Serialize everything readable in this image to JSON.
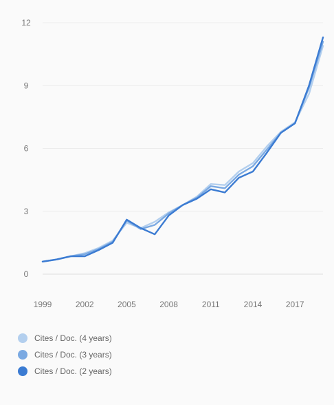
{
  "chart_data": {
    "type": "line",
    "title": "",
    "xlabel": "",
    "ylabel": "",
    "ylim": [
      0,
      12
    ],
    "yticks": [
      0,
      3,
      6,
      9,
      12
    ],
    "xlim": [
      1999,
      2019
    ],
    "xticks": [
      1999,
      2002,
      2005,
      2008,
      2011,
      2014,
      2017
    ],
    "x": [
      1999,
      2000,
      2001,
      2002,
      2003,
      2004,
      2005,
      2006,
      2007,
      2008,
      2009,
      2010,
      2011,
      2012,
      2013,
      2014,
      2015,
      2016,
      2017,
      2018,
      2019
    ],
    "grid": true,
    "legend_position": "bottom-left",
    "series": [
      {
        "name": "Cites / Doc. (4 years)",
        "color": "#b3cfee",
        "values": [
          0.6,
          0.7,
          0.85,
          1.0,
          1.25,
          1.6,
          2.45,
          2.2,
          2.5,
          2.95,
          3.3,
          3.7,
          4.3,
          4.25,
          4.9,
          5.3,
          6.1,
          6.8,
          7.25,
          8.6,
          10.9
        ]
      },
      {
        "name": "Cites / Doc. (3 years)",
        "color": "#7aa9e2",
        "values": [
          0.6,
          0.7,
          0.85,
          0.95,
          1.2,
          1.55,
          2.55,
          2.15,
          2.35,
          2.9,
          3.3,
          3.65,
          4.2,
          4.1,
          4.75,
          5.15,
          5.95,
          6.75,
          7.2,
          8.9,
          11.1
        ]
      },
      {
        "name": "Cites / Doc. (2 years)",
        "color": "#3b7bd2",
        "values": [
          0.6,
          0.7,
          0.85,
          0.85,
          1.15,
          1.5,
          2.6,
          2.2,
          1.9,
          2.8,
          3.3,
          3.6,
          4.05,
          3.9,
          4.6,
          4.9,
          5.8,
          6.75,
          7.2,
          9.0,
          11.3
        ]
      }
    ]
  }
}
